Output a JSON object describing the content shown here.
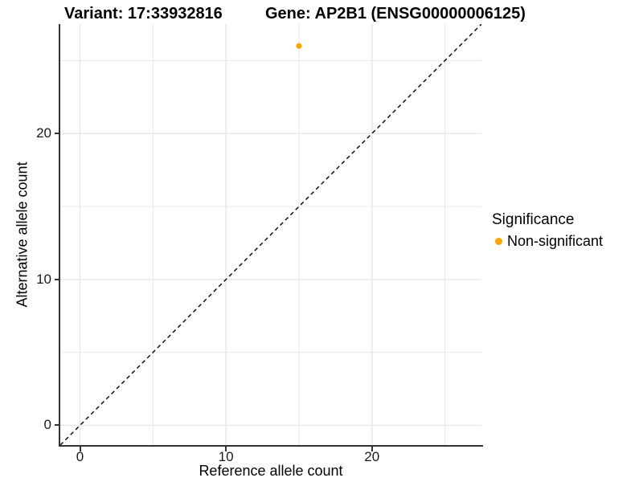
{
  "titles": {
    "variant": "Variant: 17:33932816",
    "gene": "Gene: AP2B1 (ENSG00000006125)"
  },
  "axes": {
    "x_label": "Reference allele count",
    "y_label": "Alternative allele count"
  },
  "legend": {
    "title": "Significance",
    "items": [
      {
        "label": "Non-significant",
        "color": "#FFA500"
      }
    ]
  },
  "chart_data": {
    "type": "scatter",
    "title": "Variant: 17:33932816    Gene: AP2B1 (ENSG00000006125)",
    "xlabel": "Reference allele count",
    "ylabel": "Alternative allele count",
    "xlim": [
      -1.35,
      27.5
    ],
    "ylim": [
      -1.35,
      27.5
    ],
    "xticks": [
      0,
      10,
      20
    ],
    "yticks": [
      0,
      10,
      20
    ],
    "grid_major": [
      0,
      10,
      20
    ],
    "grid_minor": [
      5,
      15,
      25
    ],
    "grid": true,
    "legend_position": "right",
    "points": [
      {
        "x": 15,
        "y": 26,
        "series": "Non-significant",
        "color": "#FFA500"
      }
    ],
    "reference_line": {
      "slope": 1,
      "intercept": 0,
      "style": "dashed",
      "color": "#000000"
    },
    "colors": {
      "point": "#FFA500",
      "grid": "#E7E7E7",
      "axis": "#333333",
      "tick_text": "#1a1a1a"
    }
  }
}
